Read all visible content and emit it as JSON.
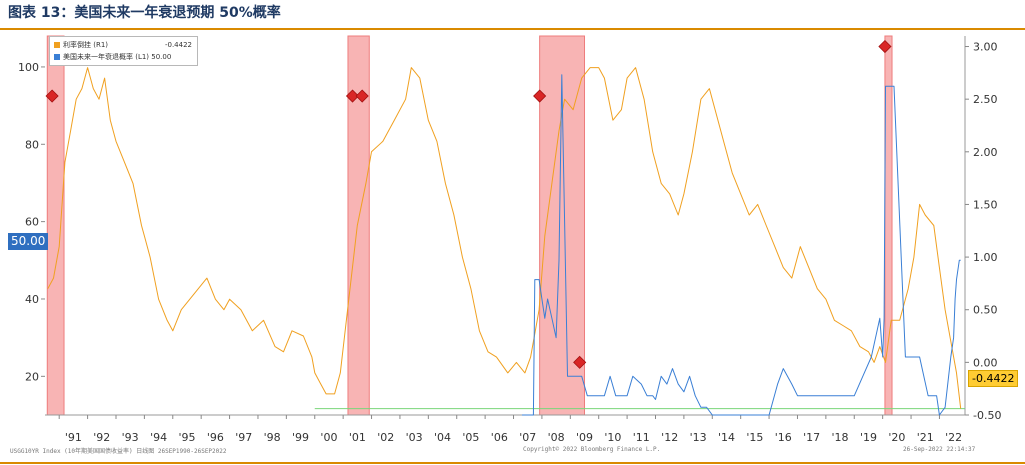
{
  "title": "图表 13：美国未来一年衰退预期 50%概率",
  "legend": {
    "items": [
      {
        "label": "利率倒挂 (R1)",
        "value": "-0.4422",
        "color": "#f0a020"
      },
      {
        "label": "美国未来一年衰退概率 (L1) 50.00",
        "value": "",
        "color": "#3a7fd5"
      }
    ]
  },
  "footer": {
    "left": "USGG10YR Index (10年期美国国债收益率)  日线图 26SEP1990-26SEP2022",
    "center": "Copyright© 2022 Bloomberg Finance L.P.",
    "right": "26-Sep-2022 22:14:37"
  },
  "tags": {
    "left_value": "50.00",
    "right_value": "-0.4422"
  },
  "colors": {
    "spread": "#f0a020",
    "probability": "#3a7fd5",
    "recession": "#f8b4b4",
    "recession_edge": "#ee7c7c",
    "zero_line": "#7ad67a",
    "marker": "#d92626",
    "tag_blue": "#2f6fc0",
    "tag_orange": "#ffcc33"
  },
  "chart_data": {
    "type": "line",
    "x_ticks": [
      "'91",
      "'92",
      "'93",
      "'94",
      "'95",
      "'96",
      "'97",
      "'98",
      "'99",
      "'00",
      "'01",
      "'02",
      "'03",
      "'04",
      "'05",
      "'06",
      "'07",
      "'08",
      "'09",
      "'10",
      "'11",
      "'12",
      "'13",
      "'14",
      "'15",
      "'16",
      "'17",
      "'18",
      "'19",
      "'20",
      "'21",
      "'22"
    ],
    "x_range": [
      1990.5,
      2022.9
    ],
    "y_left": {
      "ticks": [
        20,
        40,
        60,
        80,
        100
      ],
      "range": [
        10,
        108
      ]
    },
    "y_right": {
      "ticks": [
        -0.5,
        0.0,
        0.5,
        1.0,
        1.5,
        2.0,
        2.5,
        3.0
      ],
      "tick_labels": [
        "-0.50",
        "0.00",
        "0.50",
        "1.00",
        "1.50",
        "2.00",
        "2.50",
        "3.00"
      ],
      "range": [
        -0.5,
        3.1
      ]
    },
    "recessions": [
      [
        1990.58,
        1991.17
      ],
      [
        2001.17,
        2001.92
      ],
      [
        2007.92,
        2009.5
      ],
      [
        2020.08,
        2020.33
      ]
    ],
    "series": [
      {
        "name": "利率倒挂",
        "axis": "right",
        "x": [
          1990.6,
          1990.8,
          1991.0,
          1991.2,
          1991.4,
          1991.6,
          1991.8,
          1992.0,
          1992.2,
          1992.4,
          1992.6,
          1992.8,
          1993.0,
          1993.3,
          1993.6,
          1993.9,
          1994.0,
          1994.2,
          1994.5,
          1994.8,
          1995.0,
          1995.3,
          1995.6,
          1995.9,
          1996.2,
          1996.5,
          1996.8,
          1997.0,
          1997.4,
          1997.8,
          1998.2,
          1998.6,
          1998.9,
          1999.2,
          1999.6,
          1999.9,
          2000.0,
          2000.2,
          2000.4,
          2000.7,
          2000.9,
          2001.2,
          2001.5,
          2001.8,
          2002.0,
          2002.4,
          2002.8,
          2003.2,
          2003.4,
          2003.7,
          2004.0,
          2004.3,
          2004.6,
          2004.9,
          2005.2,
          2005.5,
          2005.8,
          2006.1,
          2006.4,
          2006.8,
          2007.1,
          2007.4,
          2007.6,
          2007.9,
          2008.1,
          2008.4,
          2008.6,
          2008.8,
          2009.1,
          2009.4,
          2009.7,
          2010.0,
          2010.2,
          2010.5,
          2010.8,
          2011.0,
          2011.3,
          2011.6,
          2011.9,
          2012.2,
          2012.5,
          2012.8,
          2013.0,
          2013.3,
          2013.6,
          2013.9,
          2014.1,
          2014.4,
          2014.7,
          2015.0,
          2015.3,
          2015.6,
          2015.9,
          2016.2,
          2016.5,
          2016.8,
          2017.1,
          2017.4,
          2017.7,
          2018.0,
          2018.3,
          2018.6,
          2018.9,
          2019.2,
          2019.5,
          2019.7,
          2019.9,
          2020.1,
          2020.3,
          2020.6,
          2020.9,
          2021.1,
          2021.3,
          2021.5,
          2021.8,
          2022.0,
          2022.2,
          2022.4,
          2022.6,
          2022.75
        ],
        "y": [
          0.7,
          0.8,
          1.1,
          1.9,
          2.2,
          2.5,
          2.6,
          2.8,
          2.6,
          2.5,
          2.7,
          2.3,
          2.1,
          1.9,
          1.7,
          1.3,
          1.2,
          1.0,
          0.6,
          0.4,
          0.3,
          0.5,
          0.6,
          0.7,
          0.8,
          0.6,
          0.5,
          0.6,
          0.5,
          0.3,
          0.4,
          0.15,
          0.1,
          0.3,
          0.25,
          0.05,
          -0.1,
          -0.2,
          -0.3,
          -0.3,
          -0.1,
          0.6,
          1.3,
          1.7,
          2.0,
          2.1,
          2.3,
          2.5,
          2.8,
          2.7,
          2.3,
          2.1,
          1.7,
          1.4,
          1.0,
          0.7,
          0.3,
          0.1,
          0.05,
          -0.1,
          0.0,
          -0.1,
          0.05,
          0.5,
          1.2,
          1.8,
          2.2,
          2.5,
          2.4,
          2.7,
          2.8,
          2.8,
          2.7,
          2.3,
          2.4,
          2.7,
          2.8,
          2.5,
          2.0,
          1.7,
          1.6,
          1.4,
          1.6,
          2.0,
          2.5,
          2.6,
          2.4,
          2.1,
          1.8,
          1.6,
          1.4,
          1.5,
          1.3,
          1.1,
          0.9,
          0.8,
          1.1,
          0.9,
          0.7,
          0.6,
          0.4,
          0.35,
          0.3,
          0.15,
          0.1,
          0.0,
          0.15,
          0.0,
          0.4,
          0.4,
          0.7,
          1.0,
          1.5,
          1.4,
          1.3,
          0.9,
          0.5,
          0.2,
          -0.1,
          -0.44
        ]
      },
      {
        "name": "美国未来一年衰退概率",
        "axis": "left",
        "x": [
          2007.3,
          2007.7,
          2007.75,
          2007.9,
          2008.0,
          2008.1,
          2008.2,
          2008.35,
          2008.5,
          2008.6,
          2008.7,
          2008.8,
          2008.9,
          2009.0,
          2009.1,
          2009.2,
          2009.4,
          2009.6,
          2009.9,
          2010.2,
          2010.4,
          2010.6,
          2010.8,
          2011.0,
          2011.2,
          2011.5,
          2011.7,
          2011.9,
          2012.0,
          2012.2,
          2012.4,
          2012.6,
          2012.8,
          2013.0,
          2013.2,
          2013.4,
          2013.6,
          2013.8,
          2014.0,
          2014.5,
          2015.0,
          2015.5,
          2016.0,
          2016.3,
          2016.5,
          2016.8,
          2017.0,
          2017.5,
          2018.0,
          2018.5,
          2019.0,
          2019.3,
          2019.6,
          2019.9,
          2020.0,
          2020.05,
          2020.1,
          2020.2,
          2020.25,
          2020.4,
          2020.6,
          2020.8,
          2021.0,
          2021.3,
          2021.6,
          2021.9,
          2022.0,
          2022.2,
          2022.4,
          2022.5,
          2022.55,
          2022.6,
          2022.7,
          2022.75
        ],
        "y": [
          10,
          10,
          45,
          45,
          40,
          35,
          40,
          35,
          30,
          50,
          98,
          60,
          20,
          20,
          20,
          20,
          20,
          15,
          15,
          15,
          20,
          15,
          15,
          15,
          20,
          18,
          15,
          15,
          14,
          20,
          18,
          22,
          18,
          16,
          20,
          15,
          12,
          12,
          10,
          10,
          10,
          10,
          10,
          18,
          22,
          18,
          15,
          15,
          15,
          15,
          15,
          20,
          25,
          35,
          25,
          35,
          95,
          95,
          95,
          95,
          60,
          25,
          25,
          25,
          15,
          15,
          10,
          12,
          25,
          30,
          40,
          45,
          50,
          50
        ]
      }
    ],
    "markers": [
      {
        "x": 1990.75,
        "axis": "right",
        "y": 2.53
      },
      {
        "x": 2001.33,
        "axis": "right",
        "y": 2.53
      },
      {
        "x": 2001.67,
        "axis": "right",
        "y": 2.53
      },
      {
        "x": 2007.92,
        "axis": "right",
        "y": 2.53
      },
      {
        "x": 2009.33,
        "axis": "right",
        "y": 0.0
      },
      {
        "x": 2020.08,
        "axis": "right",
        "y": 3.0
      }
    ]
  }
}
